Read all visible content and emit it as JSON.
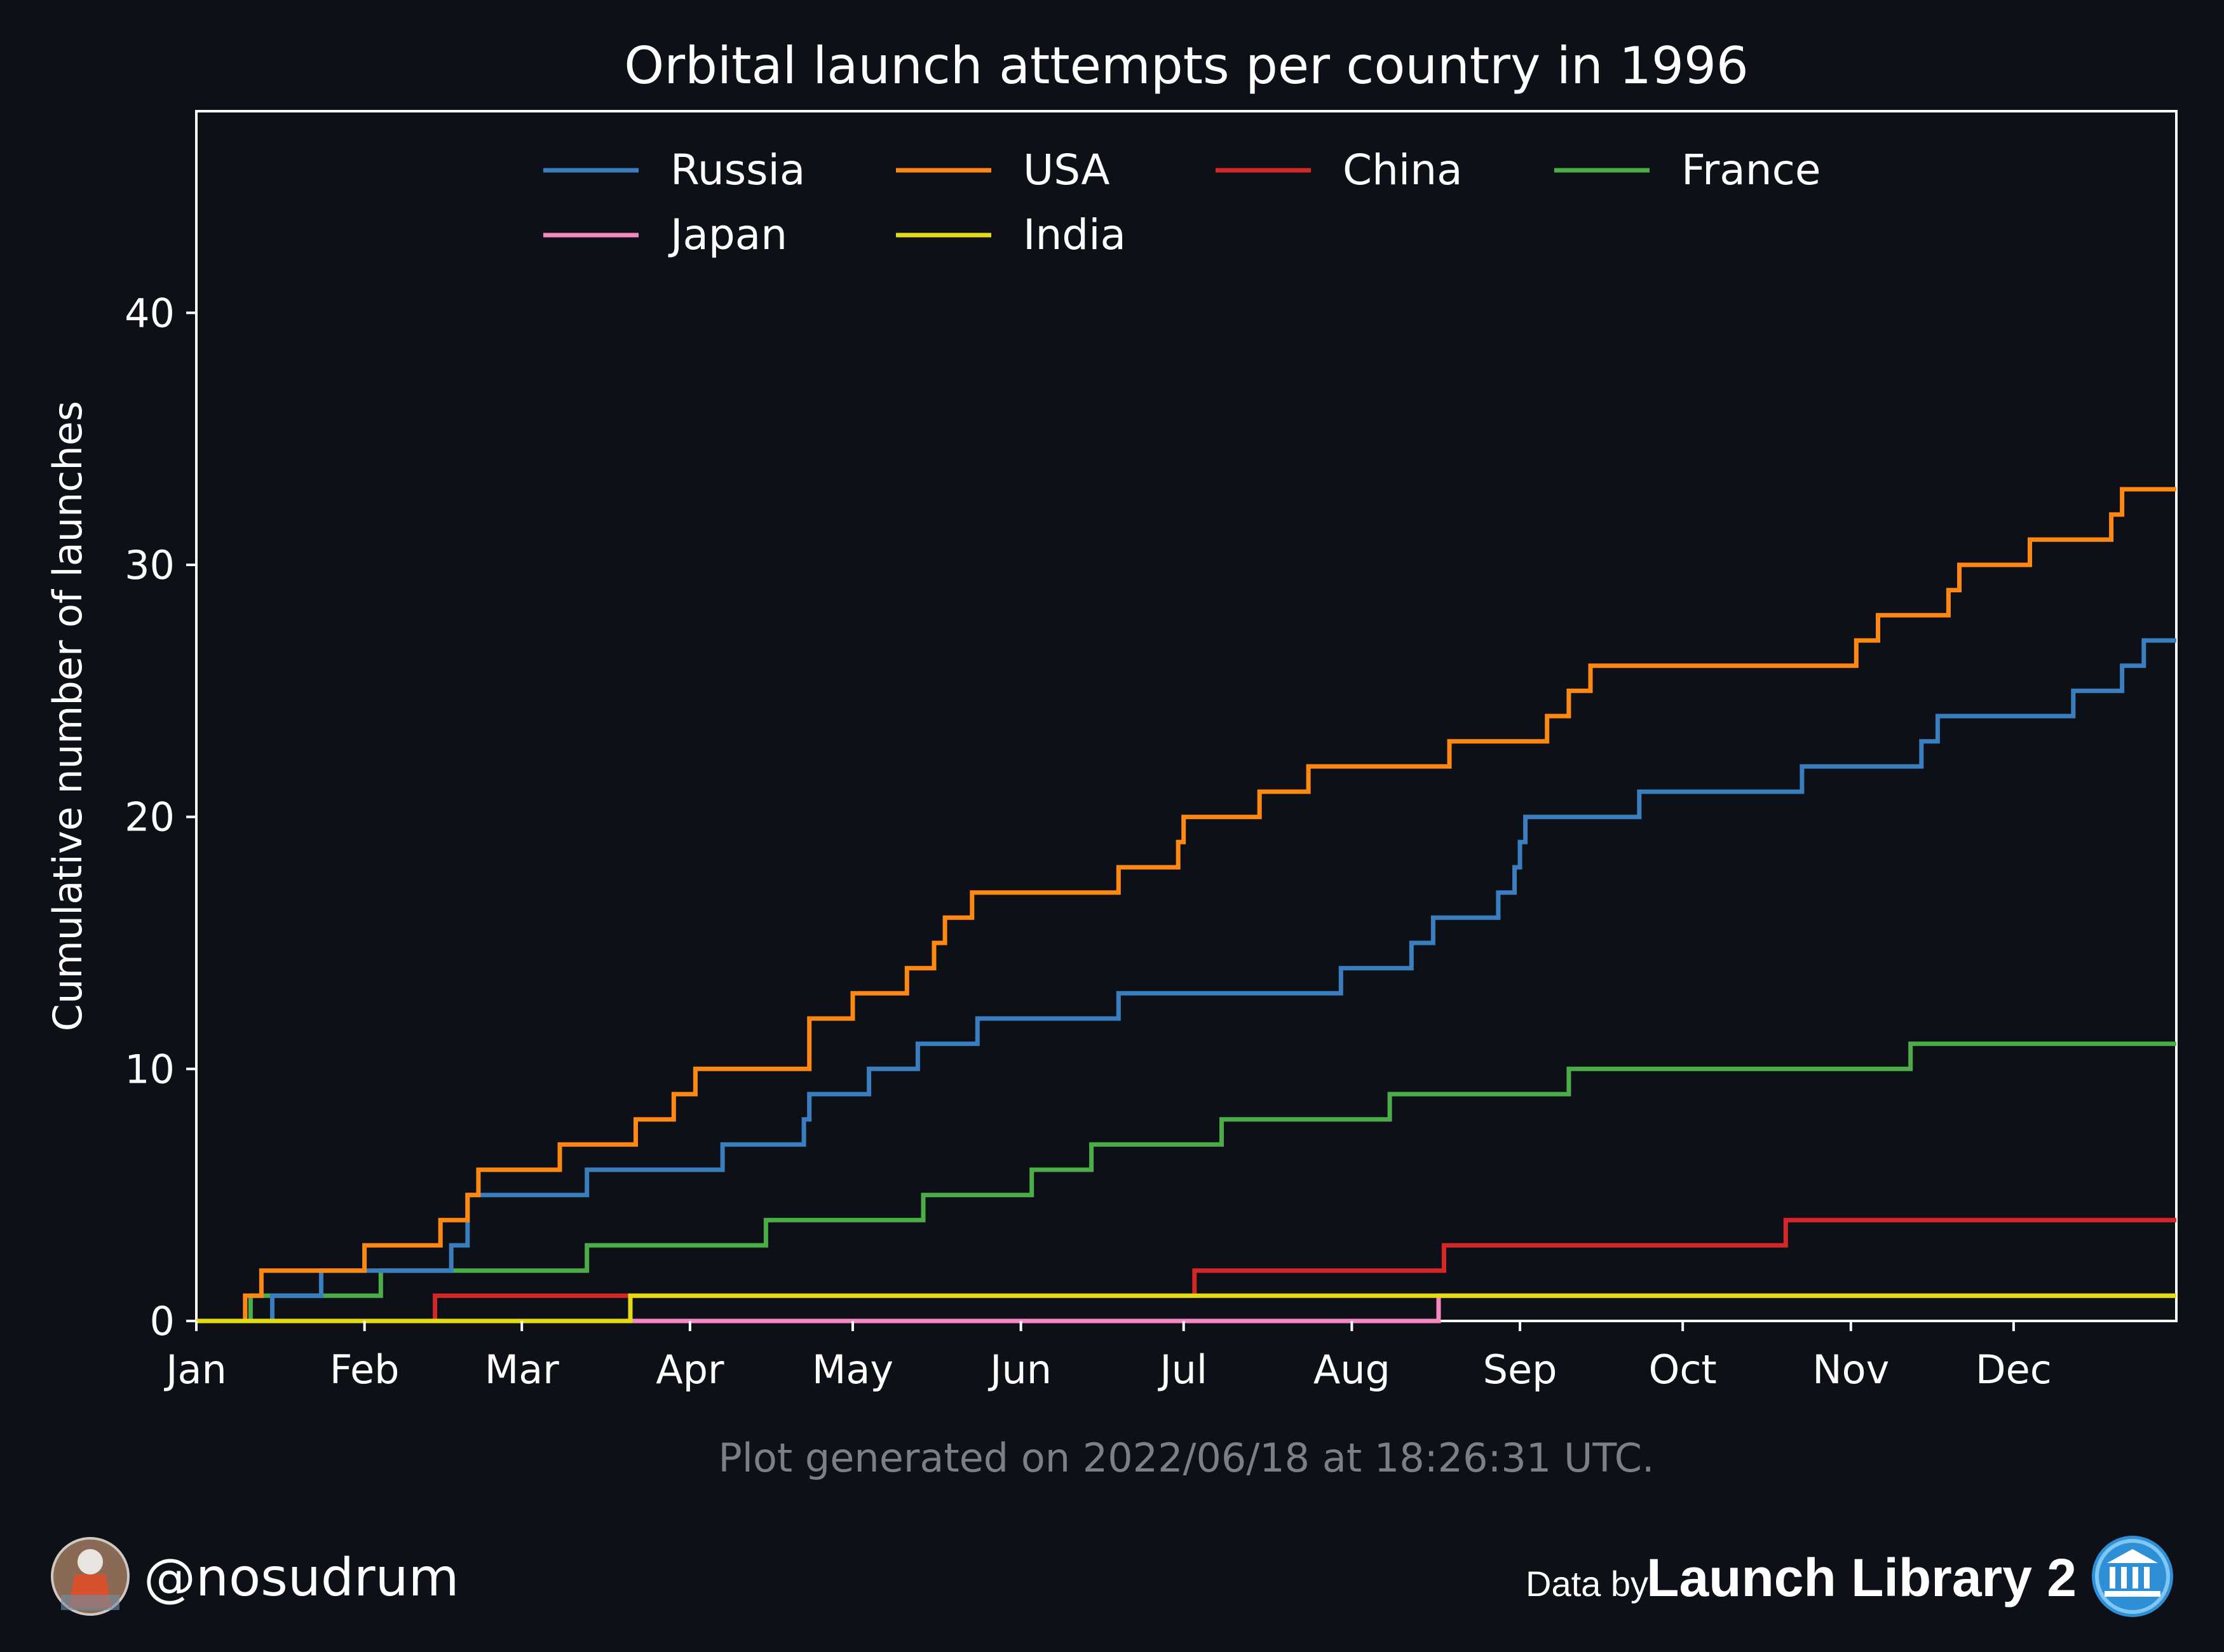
{
  "chart_data": {
    "type": "line",
    "step": "post",
    "title": "Orbital launch attempts per country in 1996",
    "xlabel": "",
    "ylabel": "Cumulative number of launches",
    "xlim": [
      "1996-01-01",
      "1996-12-31"
    ],
    "ylim": [
      0,
      48
    ],
    "x_ticks": [
      {
        "date": "1996-01-01",
        "label": "Jan"
      },
      {
        "date": "1996-02-01",
        "label": "Feb"
      },
      {
        "date": "1996-03-01",
        "label": "Mar"
      },
      {
        "date": "1996-04-01",
        "label": "Apr"
      },
      {
        "date": "1996-05-01",
        "label": "May"
      },
      {
        "date": "1996-06-01",
        "label": "Jun"
      },
      {
        "date": "1996-07-01",
        "label": "Jul"
      },
      {
        "date": "1996-08-01",
        "label": "Aug"
      },
      {
        "date": "1996-09-01",
        "label": "Sep"
      },
      {
        "date": "1996-10-01",
        "label": "Oct"
      },
      {
        "date": "1996-11-01",
        "label": "Nov"
      },
      {
        "date": "1996-12-01",
        "label": "Dec"
      }
    ],
    "y_ticks": [
      0,
      10,
      20,
      30,
      40
    ],
    "grid": false,
    "legend_position": "top",
    "legend_columns": 4,
    "series": [
      {
        "name": "Russia",
        "color": "#3a7ec0",
        "points": [
          [
            "1996-01-01",
            0
          ],
          [
            "1996-01-15",
            1
          ],
          [
            "1996-01-24",
            2
          ],
          [
            "1996-02-17",
            3
          ],
          [
            "1996-02-20",
            5
          ],
          [
            "1996-03-13",
            6
          ],
          [
            "1996-04-07",
            7
          ],
          [
            "1996-04-22",
            8
          ],
          [
            "1996-04-23",
            9
          ],
          [
            "1996-05-04",
            10
          ],
          [
            "1996-05-13",
            11
          ],
          [
            "1996-05-24",
            12
          ],
          [
            "1996-06-19",
            13
          ],
          [
            "1996-07-30",
            14
          ],
          [
            "1996-08-12",
            15
          ],
          [
            "1996-08-16",
            16
          ],
          [
            "1996-08-28",
            17
          ],
          [
            "1996-08-31",
            18
          ],
          [
            "1996-09-01",
            19
          ],
          [
            "1996-09-02",
            20
          ],
          [
            "1996-09-23",
            21
          ],
          [
            "1996-10-23",
            22
          ],
          [
            "1996-11-14",
            23
          ],
          [
            "1996-11-17",
            24
          ],
          [
            "1996-12-12",
            25
          ],
          [
            "1996-12-21",
            26
          ],
          [
            "1996-12-25",
            27
          ],
          [
            "1996-12-31",
            27
          ]
        ]
      },
      {
        "name": "USA",
        "color": "#ff8812",
        "points": [
          [
            "1996-01-01",
            0
          ],
          [
            "1996-01-10",
            1
          ],
          [
            "1996-01-13",
            2
          ],
          [
            "1996-02-01",
            3
          ],
          [
            "1996-02-15",
            4
          ],
          [
            "1996-02-20",
            5
          ],
          [
            "1996-02-22",
            6
          ],
          [
            "1996-03-08",
            7
          ],
          [
            "1996-03-22",
            8
          ],
          [
            "1996-03-29",
            9
          ],
          [
            "1996-04-02",
            10
          ],
          [
            "1996-04-23",
            12
          ],
          [
            "1996-05-01",
            13
          ],
          [
            "1996-05-11",
            14
          ],
          [
            "1996-05-16",
            15
          ],
          [
            "1996-05-18",
            16
          ],
          [
            "1996-05-23",
            17
          ],
          [
            "1996-06-19",
            18
          ],
          [
            "1996-06-30",
            19
          ],
          [
            "1996-07-01",
            20
          ],
          [
            "1996-07-15",
            21
          ],
          [
            "1996-07-24",
            22
          ],
          [
            "1996-08-19",
            23
          ],
          [
            "1996-09-06",
            24
          ],
          [
            "1996-09-10",
            25
          ],
          [
            "1996-09-14",
            26
          ],
          [
            "1996-11-02",
            27
          ],
          [
            "1996-11-06",
            28
          ],
          [
            "1996-11-19",
            29
          ],
          [
            "1996-11-21",
            30
          ],
          [
            "1996-12-04",
            31
          ],
          [
            "1996-12-19",
            32
          ],
          [
            "1996-12-21",
            33
          ],
          [
            "1996-12-31",
            33
          ]
        ]
      },
      {
        "name": "China",
        "color": "#d62728",
        "points": [
          [
            "1996-01-01",
            0
          ],
          [
            "1996-02-14",
            1
          ],
          [
            "1996-07-03",
            2
          ],
          [
            "1996-08-18",
            3
          ],
          [
            "1996-10-20",
            4
          ],
          [
            "1996-12-31",
            4
          ]
        ]
      },
      {
        "name": "France",
        "color": "#4aad48",
        "points": [
          [
            "1996-01-01",
            0
          ],
          [
            "1996-01-11",
            1
          ],
          [
            "1996-02-04",
            2
          ],
          [
            "1996-03-13",
            3
          ],
          [
            "1996-04-15",
            4
          ],
          [
            "1996-05-14",
            5
          ],
          [
            "1996-06-03",
            6
          ],
          [
            "1996-06-14",
            7
          ],
          [
            "1996-07-08",
            8
          ],
          [
            "1996-08-08",
            9
          ],
          [
            "1996-09-10",
            10
          ],
          [
            "1996-11-12",
            11
          ],
          [
            "1996-12-31",
            11
          ]
        ]
      },
      {
        "name": "Japan",
        "color": "#f587c2",
        "points": [
          [
            "1996-01-01",
            0
          ],
          [
            "1996-08-17",
            1
          ],
          [
            "1996-12-31",
            1
          ]
        ]
      },
      {
        "name": "India",
        "color": "#e3dc14",
        "points": [
          [
            "1996-01-01",
            0
          ],
          [
            "1996-03-21",
            1
          ],
          [
            "1996-12-31",
            1
          ]
        ]
      }
    ]
  },
  "footer": {
    "generated_note": "Plot generated on 2022/06/18 at 18:26:31 UTC.",
    "handle": "@nosudrum",
    "credit_prefix": "Data by",
    "credit_source": "Launch Library 2"
  },
  "icons": {
    "avatar": "avatar-photo-icon",
    "logo": "launch-library-logo-icon"
  }
}
